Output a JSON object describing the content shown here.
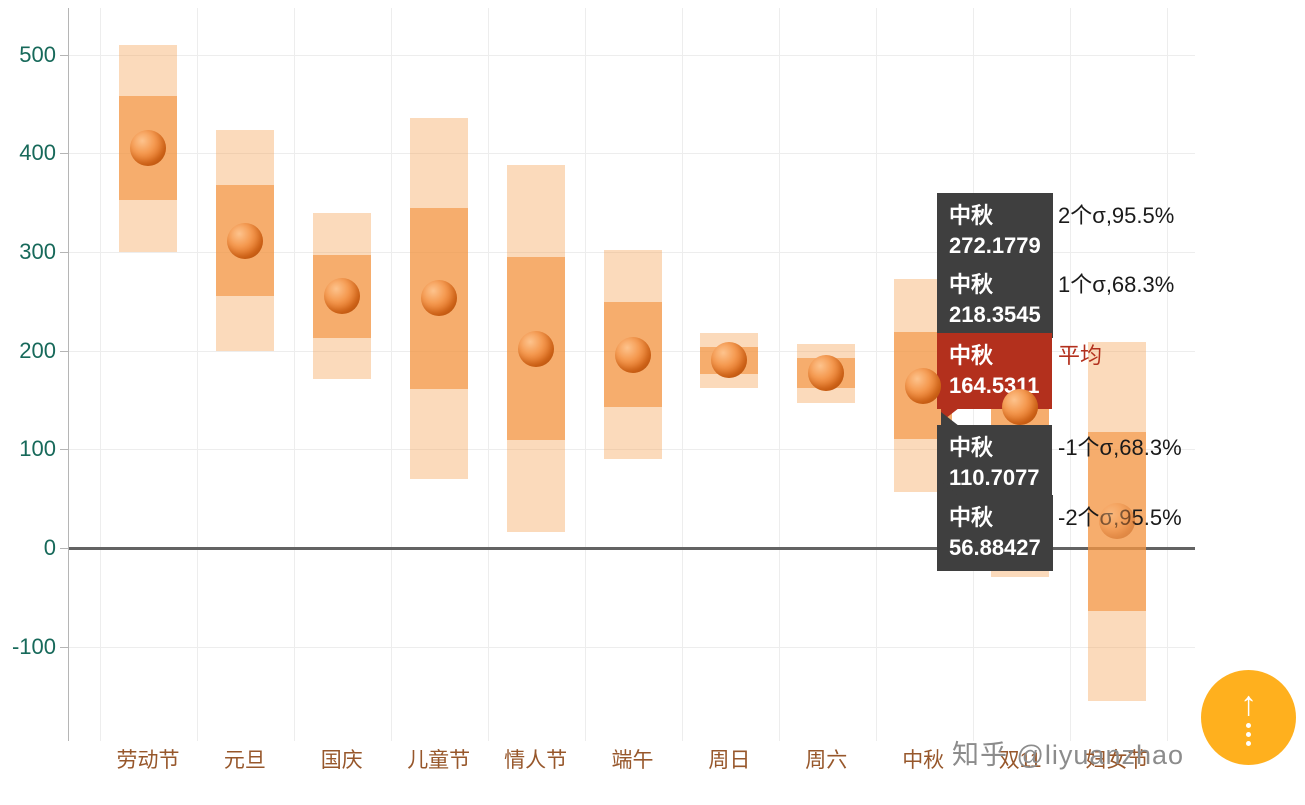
{
  "chart_data": {
    "type": "bar",
    "subtype": "mean-with-sigma-range-bands",
    "title": "",
    "xlabel": "",
    "ylabel": "",
    "categories": [
      "劳动节",
      "元旦",
      "国庆",
      "儿童节",
      "情人节",
      "端午",
      "周日",
      "周六",
      "中秋",
      "双11",
      "妇女节"
    ],
    "points": [
      {
        "category": "劳动节",
        "mean": 405,
        "sigma": 52.5
      },
      {
        "category": "元旦",
        "mean": 311.5,
        "sigma": 56
      },
      {
        "category": "国庆",
        "mean": 255,
        "sigma": 42
      },
      {
        "category": "儿童节",
        "mean": 253,
        "sigma": 91.5
      },
      {
        "category": "情人节",
        "mean": 202,
        "sigma": 93
      },
      {
        "category": "端午",
        "mean": 196,
        "sigma": 53
      },
      {
        "category": "周日",
        "mean": 190,
        "sigma": 14
      },
      {
        "category": "周六",
        "mean": 177,
        "sigma": 15
      },
      {
        "category": "中秋",
        "mean": 164.5311,
        "sigma": 53.8234
      },
      {
        "category": "双11",
        "mean": 143,
        "sigma": 86
      },
      {
        "category": "妇女节",
        "mean": 27,
        "sigma": 91,
        "muted_marker": true
      }
    ],
    "bands": [
      {
        "name": "±1σ",
        "coverage": "68.3%"
      },
      {
        "name": "±2σ",
        "coverage": "95.5%"
      }
    ],
    "yticks": [
      500,
      400,
      300,
      200,
      100,
      0,
      -100
    ],
    "ylim": [
      -195,
      547
    ],
    "grid": true,
    "legend": "none",
    "colors": {
      "outer_band": "rgba(246,166,94,0.42)",
      "inner_band": "rgba(242,145,62,0.62)",
      "marker_core": "#e8762a",
      "zero_line": "#636363",
      "grid_line": "#ededed",
      "axis_line": "#b5b5b5",
      "ytick_label": "#17695a",
      "xtick_label": "#97572b",
      "tooltip_bg": "#3f3f3f",
      "tooltip_highlight_bg": "#b3301d"
    },
    "annotations": [
      {
        "series": "中秋",
        "value": "272.1779",
        "side_label": "2个σ,95.5%",
        "highlight": false
      },
      {
        "series": "中秋",
        "value": "218.3545",
        "side_label": "1个σ,68.3%",
        "highlight": false
      },
      {
        "series": "中秋",
        "value": "164.5311",
        "side_label": "平均",
        "highlight": true
      },
      {
        "series": "中秋",
        "value": "110.7077",
        "side_label": "-1个σ,68.3%",
        "highlight": false
      },
      {
        "series": "中秋",
        "value": "56.88427",
        "side_label": "-2个σ,95.5%",
        "highlight": false
      }
    ]
  },
  "overlay": {
    "watermark": "知乎 @liyuanzhao",
    "back_to_top_icon": "up-arrow-with-dotted-tail"
  }
}
